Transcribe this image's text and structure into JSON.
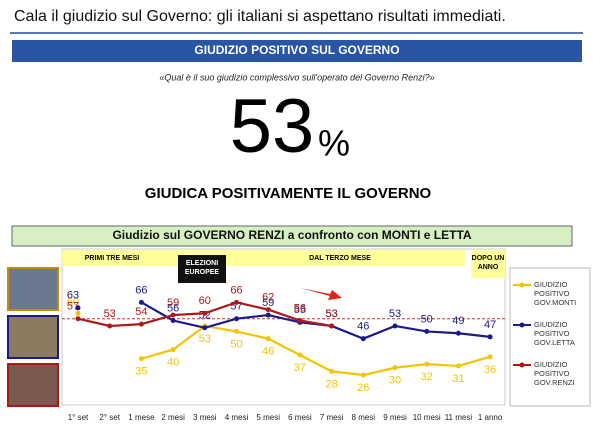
{
  "chart_data": {
    "type": "line",
    "title": "Cala il giudizio sul Governo: gli italiani si aspettano risultati immediati.",
    "banner": "GIUDIZIO POSITIVO SUL GOVERNO",
    "question": "«Qual è il suo giudizio complessivo sull'operato del Governo Renzi?»",
    "headline_value": 53,
    "headline_unit": "%",
    "headline_caption": "GIUDICA POSITIVAMENTE IL GOVERNO",
    "chart_title": "Giudizio sul GOVERNO RENZI a confronto con MONTI e LETTA",
    "periods": [
      "PRIMI TRE MESI",
      "ELEZIONI EUROPEE",
      "DAL TERZO MESE",
      "DOPO UN ANNO"
    ],
    "categories": [
      "1° set",
      "2° set",
      "1 mese",
      "2 mesi",
      "3 mesi",
      "4 mesi",
      "5 mesi",
      "6 mesi",
      "7 mesi",
      "8 mesi",
      "9 mesi",
      "10 mesi",
      "11 mesi",
      "1 anno"
    ],
    "ylim": [
      15,
      75
    ],
    "reference_line": 57,
    "series": [
      {
        "name": "GIUDIZIO POSITIVO GOV.MONTI",
        "color": "#f5c400",
        "values": [
          60,
          null,
          35,
          40,
          53,
          50,
          46,
          37,
          28,
          26,
          30,
          32,
          31,
          36
        ]
      },
      {
        "name": "GIUDIZIO POSITIVO GOV.LETTA",
        "color": "#1a1a8c",
        "values": [
          63,
          null,
          66,
          56,
          52,
          57,
          59,
          55,
          53,
          46,
          53,
          50,
          49,
          47
        ]
      },
      {
        "name": "GIUDIZIO POSITIVO GOV.RENZI",
        "color": "#b01818",
        "values": [
          57,
          53,
          54,
          59,
          60,
          66,
          62,
          56,
          53,
          null,
          null,
          null,
          null,
          null
        ]
      }
    ]
  }
}
